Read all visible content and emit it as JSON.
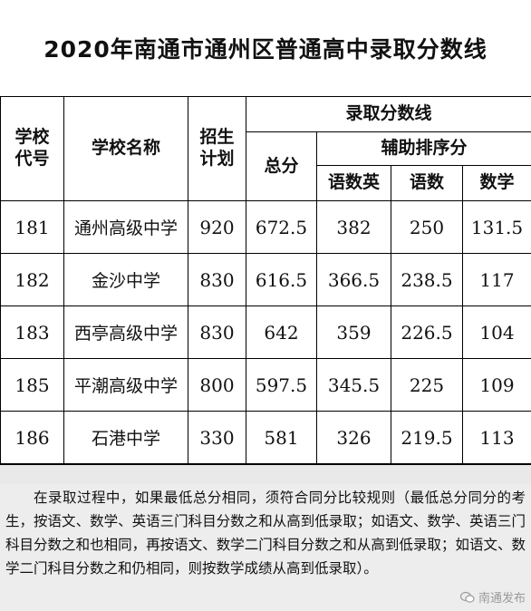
{
  "title": "2020年南通市通州区普通高中录取分数线",
  "headers": {
    "school_code": "学校代号",
    "school_name": "学校名称",
    "enrollment_plan": "招生计划",
    "cutoff_group": "录取分数线",
    "total": "总分",
    "aux_group": "辅助排序分",
    "cme": "语数英",
    "cm": "语数",
    "math": "数学"
  },
  "rows": [
    {
      "code": "181",
      "name": "通州高级中学",
      "plan": "920",
      "total": "672.5",
      "cme": "382",
      "cm": "250",
      "math": "131.5"
    },
    {
      "code": "182",
      "name": "金沙中学",
      "plan": "830",
      "total": "616.5",
      "cme": "366.5",
      "cm": "238.5",
      "math": "117"
    },
    {
      "code": "183",
      "name": "西亭高级中学",
      "plan": "830",
      "total": "642",
      "cme": "359",
      "cm": "226.5",
      "math": "104"
    },
    {
      "code": "185",
      "name": "平潮高级中学",
      "plan": "800",
      "total": "597.5",
      "cme": "345.5",
      "cm": "225",
      "math": "109"
    },
    {
      "code": "186",
      "name": "石港中学",
      "plan": "330",
      "total": "581",
      "cme": "326",
      "cm": "219.5",
      "math": "113"
    }
  ],
  "note": "在录取过程中，如果最低总分相同，须符合同分比较规则（最低总分同分的考生，按语文、数学、英语三门科目分数之和从高到低录取；如语文、数学、英语三门科目分数之和也相同，再按语文、数学二门科目分数之和从高到低录取；如语文、数学二门科目分数之和仍相同，则按数学成绩从高到低录取）。",
  "watermark": "南通发布"
}
